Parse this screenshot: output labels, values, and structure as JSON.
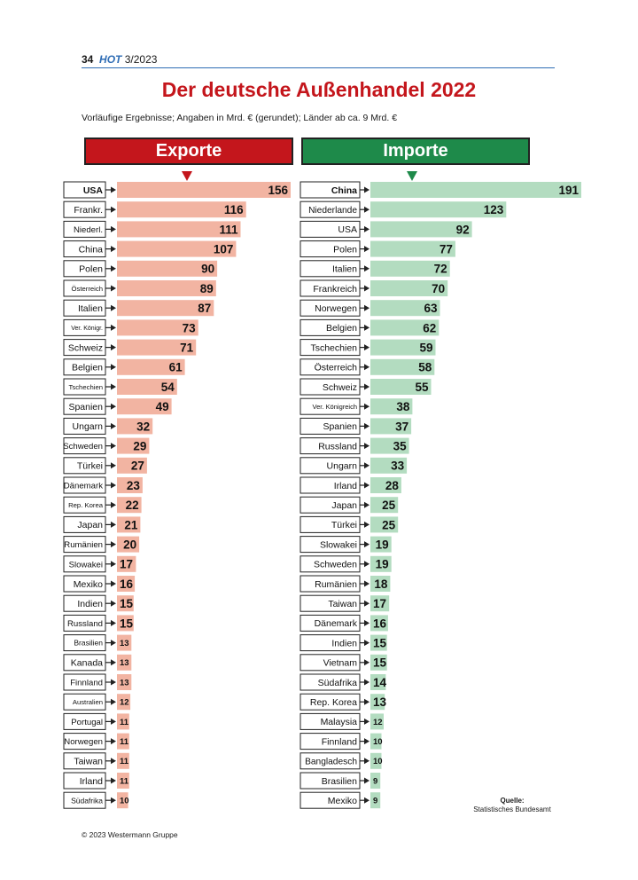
{
  "header": {
    "page": "34",
    "brand": "HOT",
    "issue": "3/2023"
  },
  "title": "Der deutsche Außenhandel 2022",
  "subtitle": "Vorläufige Ergebnisse; Angaben in Mrd. € (gerundet); Länder ab ca. 9 Mrd. €",
  "source": {
    "label": "Quelle:",
    "text": "Statistisches Bundesamt"
  },
  "footer": "© 2023 Westermann Gruppe",
  "colors": {
    "export_bar": "#f2b4a2",
    "import_bar": "#b3dcc0",
    "export_banner": "#c4161c",
    "import_banner": "#1e8a4a",
    "title": "#c4161c"
  },
  "chart_data": [
    {
      "type": "bar",
      "orientation": "horizontal",
      "title": "Exporte",
      "categories": [
        "USA",
        "Frankr.",
        "Niederl.",
        "China",
        "Polen",
        "Österreich",
        "Italien",
        "Ver. Königr.",
        "Schweiz",
        "Belgien",
        "Tschechien",
        "Spanien",
        "Ungarn",
        "Schweden",
        "Türkei",
        "Dänemark",
        "Rep. Korea",
        "Japan",
        "Rumänien",
        "Slowakei",
        "Mexiko",
        "Indien",
        "Russland",
        "Brasilien",
        "Kanada",
        "Finnland",
        "Australien",
        "Portugal",
        "Norwegen",
        "Taiwan",
        "Irland",
        "Südafrika"
      ],
      "values": [
        156,
        116,
        111,
        107,
        90,
        89,
        87,
        73,
        71,
        61,
        54,
        49,
        32,
        29,
        27,
        23,
        22,
        21,
        20,
        17,
        16,
        15,
        15,
        13,
        13,
        13,
        12,
        11,
        11,
        11,
        11,
        10
      ]
    },
    {
      "type": "bar",
      "orientation": "horizontal",
      "title": "Importe",
      "categories": [
        "China",
        "Niederlande",
        "USA",
        "Polen",
        "Italien",
        "Frankreich",
        "Norwegen",
        "Belgien",
        "Tschechien",
        "Österreich",
        "Schweiz",
        "Ver. Königreich",
        "Spanien",
        "Russland",
        "Ungarn",
        "Irland",
        "Japan",
        "Türkei",
        "Slowakei",
        "Schweden",
        "Rumänien",
        "Taiwan",
        "Dänemark",
        "Indien",
        "Vietnam",
        "Südafrika",
        "Rep. Korea",
        "Malaysia",
        "Finnland",
        "Bangladesch",
        "Brasilien",
        "Mexiko"
      ],
      "values": [
        191,
        123,
        92,
        77,
        72,
        70,
        63,
        62,
        59,
        58,
        55,
        38,
        37,
        35,
        33,
        28,
        25,
        25,
        19,
        19,
        18,
        17,
        16,
        15,
        15,
        14,
        13,
        12,
        10,
        10,
        9,
        9
      ]
    }
  ]
}
